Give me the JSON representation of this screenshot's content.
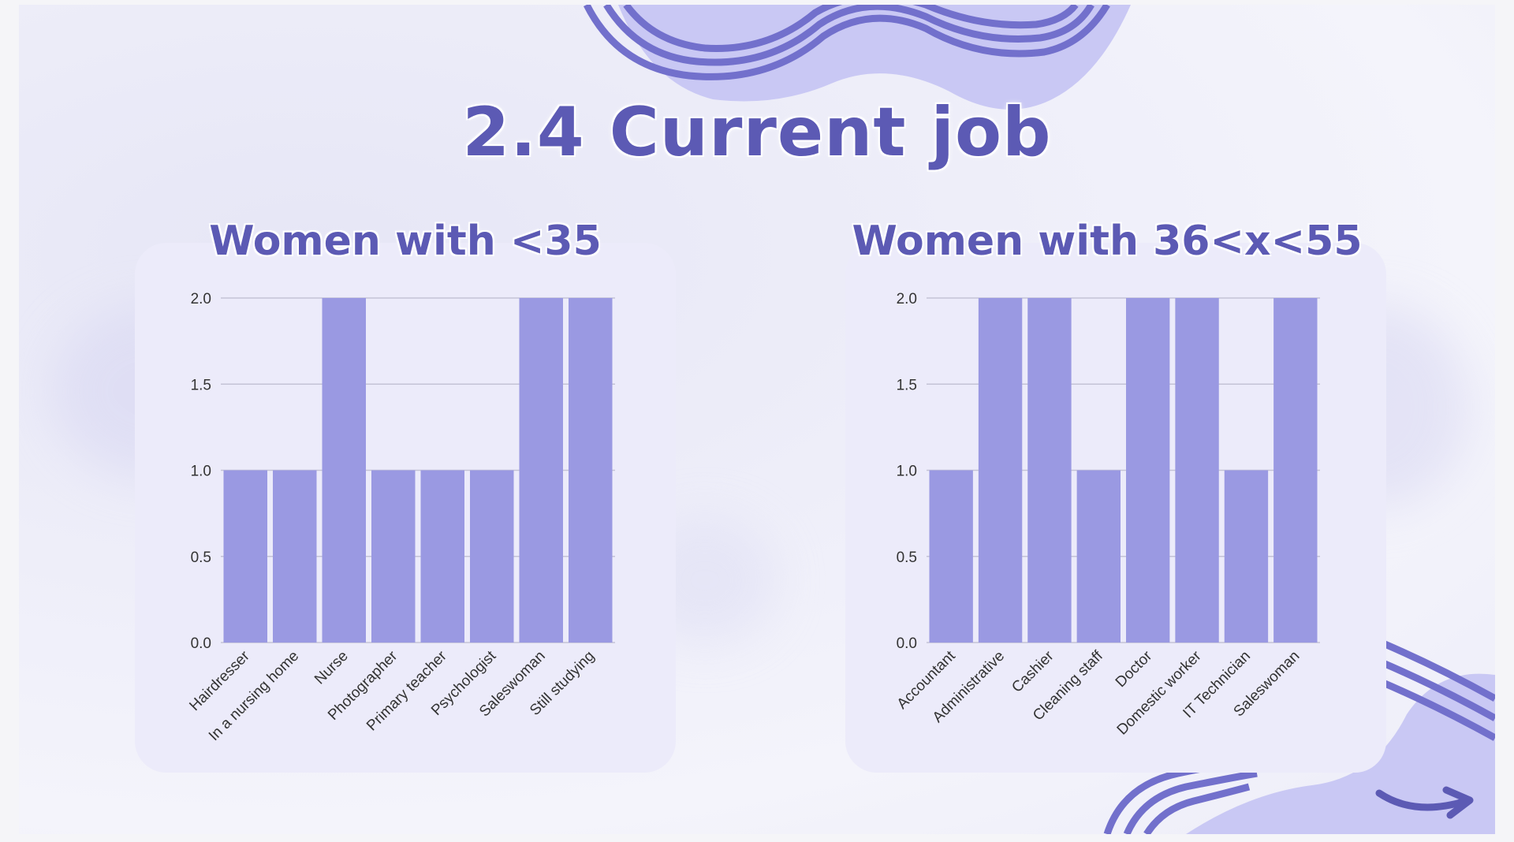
{
  "slide": {
    "title": "2.4 Current job",
    "colors": {
      "title": "#5c5ab4",
      "bar": "#9a99e2",
      "panel": "#ecebfa",
      "deco": "#7270cc",
      "deco_light": "#c9c8f4"
    },
    "decorations": [
      "wave-lines-top",
      "wave-lines-bottom-right",
      "arrow-right-icon"
    ]
  },
  "chart_data": [
    {
      "type": "bar",
      "title": "Women with <35",
      "categories": [
        "Hairdresser",
        "In a nursing home",
        "Nurse",
        "Photographer",
        "Primary teacher",
        "Psychologist",
        "Saleswoman",
        "Still studying"
      ],
      "values": [
        1,
        1,
        2,
        1,
        1,
        1,
        2,
        2
      ],
      "ylim": [
        0,
        2
      ],
      "yticks": [
        "0.0",
        "0.5",
        "1.0",
        "1.5",
        "2.0"
      ],
      "grid": true,
      "xlabel": "",
      "ylabel": ""
    },
    {
      "type": "bar",
      "title": "Women with 36<x<55",
      "categories": [
        "Accountant",
        "Administrative",
        "Cashier",
        "Cleaning staff",
        "Doctor",
        "Domestic worker",
        "IT Technician",
        "Saleswoman"
      ],
      "values": [
        1,
        2,
        2,
        1,
        2,
        2,
        1,
        2
      ],
      "ylim": [
        0,
        2
      ],
      "yticks": [
        "0.0",
        "0.5",
        "1.0",
        "1.5",
        "2.0"
      ],
      "grid": true,
      "xlabel": "",
      "ylabel": ""
    }
  ]
}
